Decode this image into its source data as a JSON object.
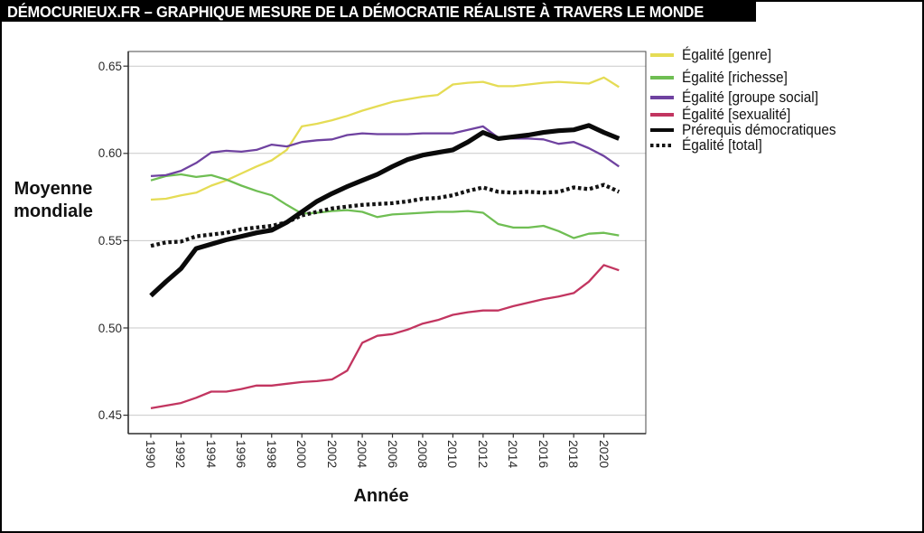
{
  "header": {
    "title": "DÉMOCURIEUX.FR – GRAPHIQUE MESURE DE LA DÉMOCRATIE RÉALISTE À TRAVERS LE MONDE"
  },
  "colors": {
    "title_bar_bg": "#000000",
    "title_bar_text": "#ffffff",
    "grid": "#c9c9c9",
    "plot_border": "#4a4a4a",
    "axis_line": "#2e2e2e",
    "tick_text": "#2b2b2b"
  },
  "chart_data": {
    "type": "line",
    "title": "",
    "xlabel": "Année",
    "ylabel": "Moyenne mondiale",
    "grid": true,
    "legend_position": "top-right",
    "xlim": [
      1988.5,
      2022.8
    ],
    "ylim": [
      0.439,
      0.658
    ],
    "x": [
      1990,
      1991,
      1992,
      1993,
      1994,
      1995,
      1996,
      1997,
      1998,
      1999,
      2000,
      2001,
      2002,
      2003,
      2004,
      2005,
      2006,
      2007,
      2008,
      2009,
      2010,
      2011,
      2012,
      2013,
      2014,
      2015,
      2016,
      2017,
      2018,
      2019,
      2020,
      2021
    ],
    "x_tick_labels": [
      "1990",
      "1992",
      "1994",
      "1996",
      "1998",
      "2000",
      "2002",
      "2004",
      "2006",
      "2008",
      "2010",
      "2012",
      "2014",
      "2016",
      "2018",
      "2020"
    ],
    "y_ticks": [
      0.65,
      0.6,
      0.55,
      0.5,
      0.45
    ],
    "y_tick_labels": [
      "0.65",
      "0.60",
      "0.55",
      "0.50",
      "0.45"
    ],
    "series": [
      {
        "id": "genre",
        "name": "Égalité [genre]",
        "color": "#e5dc55",
        "style": "solid",
        "width": 2.3,
        "values": [
          0.5735,
          0.574,
          0.576,
          0.5775,
          0.5815,
          0.5845,
          0.5885,
          0.5925,
          0.596,
          0.602,
          0.6155,
          0.617,
          0.619,
          0.6215,
          0.6245,
          0.627,
          0.6295,
          0.631,
          0.6325,
          0.6335,
          0.6395,
          0.6405,
          0.641,
          0.6385,
          0.6385,
          0.6395,
          0.6405,
          0.641,
          0.6405,
          0.64,
          0.6435,
          0.638
        ]
      },
      {
        "id": "richesse",
        "name": "Égalité [richesse]",
        "color": "#6fbe53",
        "style": "solid",
        "width": 2.3,
        "values": [
          0.5845,
          0.587,
          0.588,
          0.5865,
          0.5875,
          0.585,
          0.5815,
          0.5785,
          0.576,
          0.5705,
          0.5655,
          0.566,
          0.567,
          0.5675,
          0.5665,
          0.5635,
          0.565,
          0.5655,
          0.566,
          0.5665,
          0.5665,
          0.567,
          0.566,
          0.5595,
          0.5575,
          0.5575,
          0.5585,
          0.5555,
          0.5515,
          0.554,
          0.5545,
          0.553
        ]
      },
      {
        "id": "groupe-social",
        "name": "Égalité [groupe social]",
        "color": "#6f42a0",
        "style": "solid",
        "width": 2.3,
        "values": [
          0.587,
          0.5875,
          0.59,
          0.5945,
          0.6005,
          0.6015,
          0.601,
          0.602,
          0.605,
          0.604,
          0.6065,
          0.6075,
          0.608,
          0.6105,
          0.6115,
          0.611,
          0.611,
          0.611,
          0.6115,
          0.6115,
          0.6115,
          0.6135,
          0.6155,
          0.609,
          0.6085,
          0.6085,
          0.608,
          0.6055,
          0.6065,
          0.603,
          0.5985,
          0.5925
        ]
      },
      {
        "id": "sexualite",
        "name": "Égalité [sexualité]",
        "color": "#c23560",
        "style": "solid",
        "width": 2.3,
        "values": [
          0.454,
          0.4555,
          0.457,
          0.46,
          0.4635,
          0.4635,
          0.465,
          0.467,
          0.467,
          0.468,
          0.469,
          0.4695,
          0.4705,
          0.4755,
          0.4915,
          0.4955,
          0.4965,
          0.499,
          0.5025,
          0.5045,
          0.5075,
          0.509,
          0.51,
          0.51,
          0.5125,
          0.5145,
          0.5165,
          0.518,
          0.52,
          0.5265,
          0.536,
          0.533
        ]
      },
      {
        "id": "total",
        "name": "Égalité [total]",
        "color": "#141414",
        "style": "dotted",
        "width": 4.3,
        "values": [
          0.547,
          0.549,
          0.5495,
          0.5525,
          0.5535,
          0.5545,
          0.5565,
          0.5575,
          0.5585,
          0.5605,
          0.5645,
          0.5665,
          0.5685,
          0.5695,
          0.5705,
          0.571,
          0.5715,
          0.5725,
          0.574,
          0.5745,
          0.576,
          0.5785,
          0.5805,
          0.578,
          0.5775,
          0.578,
          0.5775,
          0.578,
          0.5805,
          0.5795,
          0.582,
          0.578
        ]
      },
      {
        "id": "prerequis",
        "name": "Prérequis démocratiques",
        "color": "#0a0a0a",
        "style": "solid",
        "width": 5.2,
        "values": [
          0.5185,
          0.5265,
          0.534,
          0.5455,
          0.548,
          0.5505,
          0.5525,
          0.5545,
          0.556,
          0.5605,
          0.5665,
          0.5725,
          0.577,
          0.581,
          0.5845,
          0.588,
          0.5925,
          0.5965,
          0.599,
          0.6005,
          0.602,
          0.6065,
          0.612,
          0.6085,
          0.6095,
          0.6105,
          0.612,
          0.613,
          0.6135,
          0.616,
          0.612,
          0.6085
        ]
      }
    ],
    "legend_order": [
      "genre",
      "richesse",
      "groupe-social",
      "sexualite",
      "prerequis",
      "total"
    ]
  }
}
